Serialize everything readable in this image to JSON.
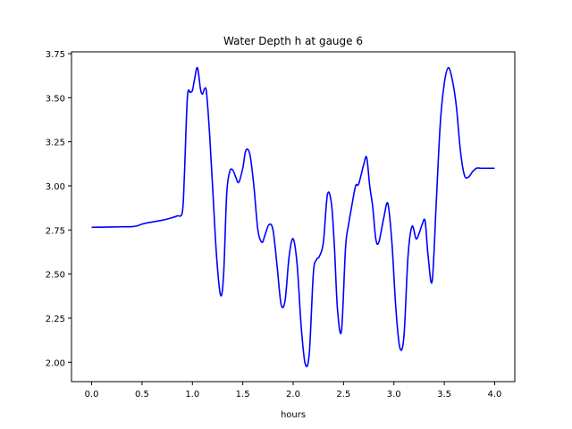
{
  "chart_data": {
    "type": "line",
    "title": "Water Depth h at gauge 6",
    "xlabel": "hours",
    "ylabel": "",
    "xlim": [
      -0.2,
      4.2
    ],
    "ylim": [
      1.89,
      3.76
    ],
    "xticks": [
      0.0,
      0.5,
      1.0,
      1.5,
      2.0,
      2.5,
      3.0,
      3.5,
      4.0
    ],
    "xtick_labels": [
      "0.0",
      "0.5",
      "1.0",
      "1.5",
      "2.0",
      "2.5",
      "3.0",
      "3.5",
      "4.0"
    ],
    "yticks": [
      2.0,
      2.25,
      2.5,
      2.75,
      3.0,
      3.25,
      3.5,
      3.75
    ],
    "ytick_labels": [
      "2.00",
      "2.25",
      "2.50",
      "2.75",
      "3.00",
      "3.25",
      "3.50",
      "3.75"
    ],
    "grid": false,
    "series": [
      {
        "color": "#0000ff",
        "x": [
          0.0,
          0.1,
          0.2,
          0.3,
          0.4,
          0.45,
          0.5,
          0.55,
          0.6,
          0.7,
          0.8,
          0.85,
          0.9,
          0.92,
          0.95,
          0.98,
          1.0,
          1.02,
          1.05,
          1.08,
          1.1,
          1.12,
          1.14,
          1.17,
          1.2,
          1.24,
          1.28,
          1.31,
          1.34,
          1.37,
          1.4,
          1.43,
          1.46,
          1.5,
          1.53,
          1.57,
          1.61,
          1.65,
          1.69,
          1.72,
          1.76,
          1.8,
          1.84,
          1.88,
          1.92,
          1.96,
          2.0,
          2.04,
          2.08,
          2.12,
          2.16,
          2.2,
          2.23,
          2.26,
          2.3,
          2.34,
          2.38,
          2.41,
          2.44,
          2.48,
          2.52,
          2.55,
          2.58,
          2.62,
          2.65,
          2.7,
          2.73,
          2.76,
          2.79,
          2.82,
          2.85,
          2.9,
          2.94,
          2.98,
          3.02,
          3.06,
          3.1,
          3.14,
          3.18,
          3.22,
          3.25,
          3.28,
          3.31,
          3.34,
          3.38,
          3.42,
          3.46,
          3.5,
          3.54,
          3.58,
          3.62,
          3.66,
          3.7,
          3.74,
          3.78,
          3.82,
          3.86,
          3.9,
          3.94,
          4.0
        ],
        "y": [
          2.765,
          2.766,
          2.767,
          2.768,
          2.769,
          2.773,
          2.783,
          2.79,
          2.795,
          2.805,
          2.82,
          2.83,
          2.85,
          3.05,
          3.5,
          3.53,
          3.54,
          3.6,
          3.67,
          3.55,
          3.52,
          3.55,
          3.53,
          3.3,
          3.0,
          2.6,
          2.38,
          2.5,
          2.95,
          3.08,
          3.09,
          3.05,
          3.02,
          3.1,
          3.2,
          3.18,
          3.0,
          2.75,
          2.68,
          2.72,
          2.78,
          2.75,
          2.55,
          2.33,
          2.35,
          2.6,
          2.7,
          2.55,
          2.2,
          1.99,
          2.05,
          2.5,
          2.58,
          2.6,
          2.68,
          2.95,
          2.9,
          2.65,
          2.3,
          2.18,
          2.65,
          2.78,
          2.88,
          3.0,
          3.01,
          3.12,
          3.16,
          3.0,
          2.88,
          2.7,
          2.68,
          2.82,
          2.9,
          2.68,
          2.3,
          2.08,
          2.15,
          2.6,
          2.77,
          2.7,
          2.73,
          2.78,
          2.8,
          2.6,
          2.46,
          2.9,
          3.35,
          3.58,
          3.67,
          3.6,
          3.45,
          3.2,
          3.06,
          3.05,
          3.08,
          3.1,
          3.1,
          3.1,
          3.1,
          3.1
        ]
      }
    ]
  }
}
